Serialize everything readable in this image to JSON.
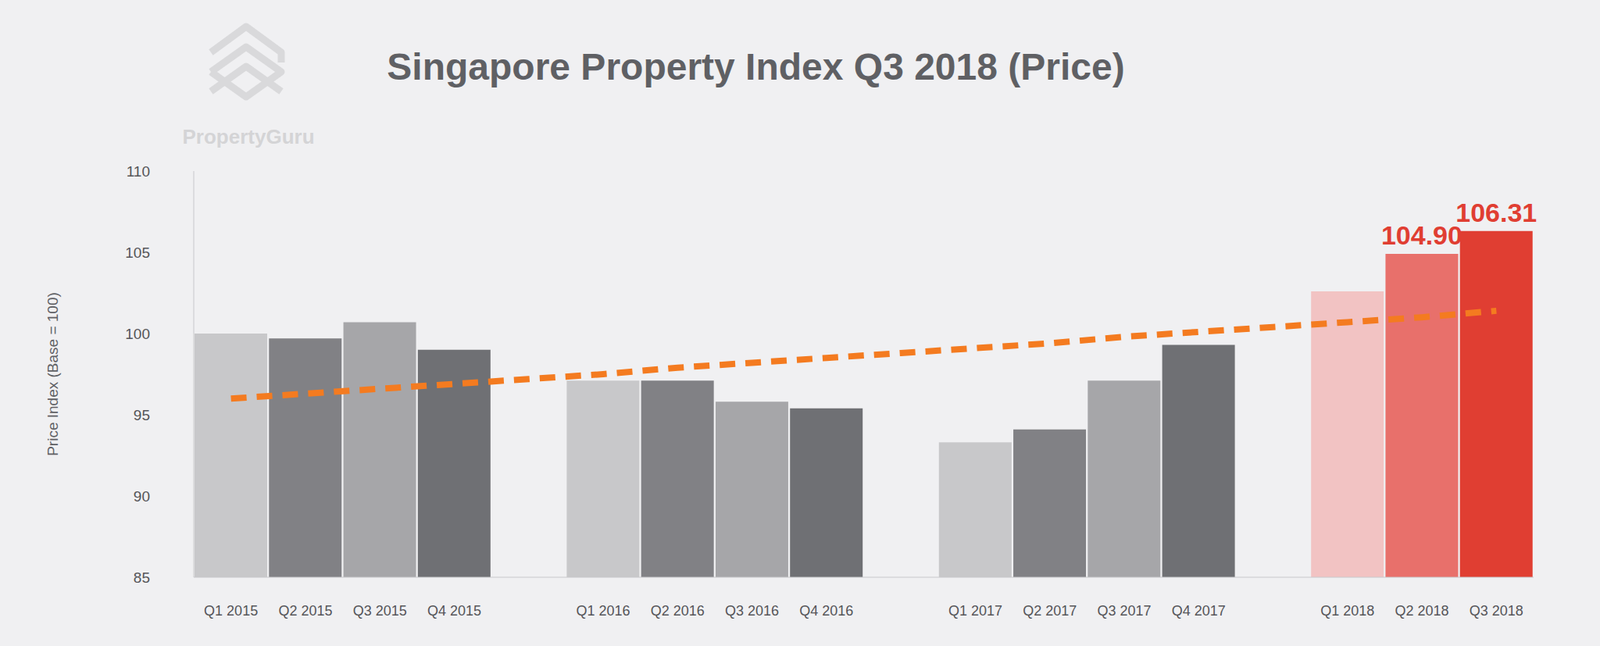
{
  "chart_data": {
    "type": "bar",
    "title": "Singapore Property Index Q3 2018 (Price)",
    "source": "PropertyGuru",
    "y_label": "Price Index (Base = 100)",
    "categories": [
      "Q1 2015",
      "Q2 2015",
      "Q3 2015",
      "Q4 2015",
      null,
      "Q1 2016",
      "Q2 2016",
      "Q3 2016",
      "Q4 2016",
      null,
      "Q1 2017",
      "Q2 2017",
      "Q3 2017",
      "Q4 2017",
      null,
      "Q1 2018",
      "Q2 2018",
      "Q3 2018"
    ],
    "values": [
      100.0,
      99.7,
      100.7,
      99.0,
      null,
      97.1,
      97.1,
      95.8,
      95.4,
      null,
      93.3,
      94.1,
      97.1,
      99.3,
      null,
      102.6,
      104.9,
      106.31
    ],
    "value_labels": [
      null,
      null,
      null,
      null,
      null,
      null,
      null,
      null,
      null,
      null,
      null,
      null,
      null,
      null,
      null,
      null,
      "104.90",
      "106.31"
    ],
    "data_labels": true,
    "colors": [
      "#c8c8ca",
      "#818185",
      "#a6a6a9",
      "#6f7074",
      null,
      "#c8c8ca",
      "#818185",
      "#a6a6a9",
      "#6f7074",
      null,
      "#c8c8ca",
      "#818185",
      "#a6a6a9",
      "#6f7074",
      null,
      "#f2c3c3",
      "#e8706b",
      "#e03e32"
    ],
    "trendline": {
      "values": [
        96.0,
        96.3,
        96.6,
        96.9,
        97.2,
        97.5,
        97.9,
        98.2,
        98.5,
        98.8,
        99.1,
        99.4,
        99.8,
        100.1,
        100.4,
        100.7,
        101.0,
        101.4
      ],
      "color": "#f47b20",
      "line_style": "dashed"
    },
    "ylim": [
      85,
      110
    ],
    "yticks": [
      85,
      90,
      95,
      100,
      105,
      110
    ],
    "grid": false
  }
}
